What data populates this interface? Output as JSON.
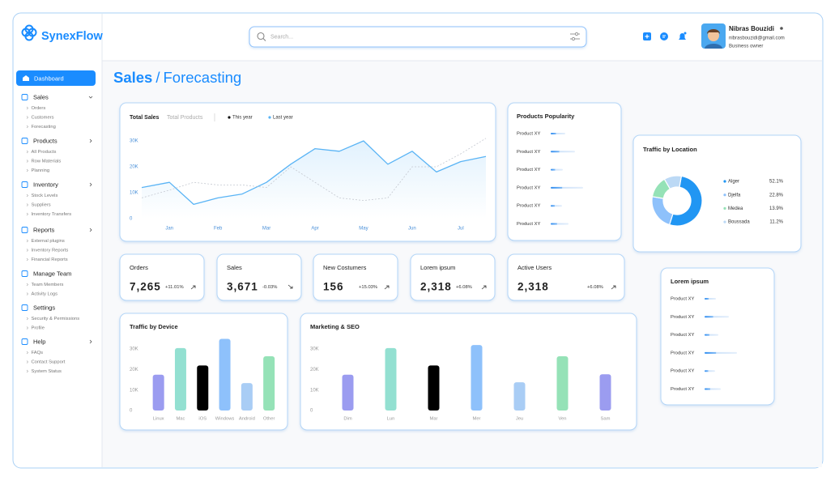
{
  "brand": "SynexFlow",
  "search": {
    "placeholder": "Search..."
  },
  "user": {
    "name": "Nibras Bouzidi",
    "email": "nibrasbouzidi@gmail.com",
    "role": "Business owner"
  },
  "sidebar": [
    {
      "label": "Dashboard",
      "children": []
    },
    {
      "label": "Sales",
      "children": [
        "Orders",
        "Customers",
        "Forecasting"
      ]
    },
    {
      "label": "Products",
      "children": [
        "All Products",
        "Row Materials",
        "Planning"
      ]
    },
    {
      "label": "Inventory",
      "children": [
        "Stock Levels",
        "Suppliers",
        "Inventory Transfers"
      ]
    },
    {
      "label": "Reports",
      "children": [
        "External plugins",
        "Inventory Reports",
        "Financial Reports"
      ]
    },
    {
      "label": "Manage Team",
      "children": [
        "Team Members",
        "Activity Logs"
      ]
    },
    {
      "label": "Settings",
      "children": [
        "Security & Permissions",
        "Profile"
      ]
    },
    {
      "label": "Help",
      "children": [
        "FAQs",
        "Contact Support",
        "System Status"
      ]
    }
  ],
  "page_title": {
    "section": "Sales",
    "separator": "/",
    "page": "Forecasting"
  },
  "stats": [
    {
      "label": "Orders",
      "value": "7,265",
      "change": "+11.01%"
    },
    {
      "label": "Sales",
      "value": "3,671",
      "change": "-0.03%"
    },
    {
      "label": "New Costumers",
      "value": "156",
      "change": "+15.03%"
    },
    {
      "label": "Lorem ipsum",
      "value": "2,318",
      "change": "+6.08%"
    },
    {
      "label": "Active Users",
      "value": "2,318",
      "change": "+6.08%"
    }
  ],
  "products_popularity": {
    "title": "Products Popularity",
    "rows": [
      {
        "label": "Product XY",
        "value": 18
      },
      {
        "label": "Product XY",
        "value": 30
      },
      {
        "label": "Product XY",
        "value": 15
      },
      {
        "label": "Product XY",
        "value": 40
      },
      {
        "label": "Product XY",
        "value": 14
      },
      {
        "label": "Product XY",
        "value": 22
      }
    ]
  },
  "lorem_list": {
    "title": "Lorem ipsum",
    "rows": [
      {
        "label": "Product XY",
        "value": 14
      },
      {
        "label": "Product XY",
        "value": 30
      },
      {
        "label": "Product XY",
        "value": 17
      },
      {
        "label": "Product XY",
        "value": 40
      },
      {
        "label": "Product XY",
        "value": 13
      },
      {
        "label": "Product XY",
        "value": 20
      }
    ]
  },
  "chart_data": [
    {
      "type": "line",
      "tabs": [
        "Total Sales",
        "Total Products"
      ],
      "x": [
        -0.57,
        0,
        0.5,
        1,
        1.5,
        2,
        2.5,
        3,
        3.5,
        4,
        4.5,
        5,
        5.5,
        6,
        6.52
      ],
      "xlim": [
        -0.57,
        6.52
      ],
      "xticks": [
        {
          "value": 0,
          "label": "Jan"
        },
        {
          "value": 1,
          "label": "Feb"
        },
        {
          "value": 2,
          "label": "Mar"
        },
        {
          "value": 3,
          "label": "Apr"
        },
        {
          "value": 4,
          "label": "May"
        },
        {
          "value": 5,
          "label": "Jun"
        },
        {
          "value": 6,
          "label": "Jul"
        }
      ],
      "ylim": [
        0,
        30000
      ],
      "yticks": [
        0,
        {
          "value": 10000,
          "label": "10K"
        },
        {
          "value": 20000,
          "label": "20K"
        },
        {
          "value": 30000,
          "label": "30K"
        }
      ],
      "series": [
        {
          "name": "This year",
          "color": "#5ab4f5",
          "marker": "#111111",
          "values": [
            12000,
            14000,
            5500,
            8000,
            9500,
            14000,
            21000,
            27000,
            26000,
            30000,
            21000,
            26000,
            18000,
            22000,
            24000
          ]
        },
        {
          "name": "Last year",
          "color": "#c4c8d0",
          "marker": "#5ab4f5",
          "values": [
            8000,
            11000,
            14000,
            13000,
            13000,
            12000,
            20000,
            14000,
            8000,
            7000,
            8000,
            20000,
            20000,
            25000,
            31000
          ]
        }
      ]
    },
    {
      "type": "bar",
      "title": "Traffic by Device",
      "categories": [
        "Linux",
        "Mac",
        "iOS",
        "Windows",
        "Android",
        "Other"
      ],
      "values": [
        17500,
        30500,
        22000,
        35000,
        13400,
        26500
      ],
      "colors": [
        "#9b9cf0",
        "#93e0d1",
        "#000000",
        "#8ec1fb",
        "#a9cdf5",
        "#95e2b7"
      ],
      "ylim": [
        0,
        36000
      ],
      "yticks": [
        0,
        {
          "value": 10000,
          "label": "10K"
        },
        {
          "value": 20000,
          "label": "20K"
        },
        {
          "value": 30000,
          "label": "30K"
        }
      ]
    },
    {
      "type": "bar",
      "title": "Marketing & SEO",
      "categories": [
        "Dim",
        "Lun",
        "Mar",
        "Mer",
        "Jeu",
        "Ven",
        "Sam"
      ],
      "values": [
        17500,
        30500,
        22000,
        32000,
        13800,
        26500,
        17700
      ],
      "colors": [
        "#9b9cf0",
        "#93e0d1",
        "#000000",
        "#8ec1fb",
        "#a9cdf5",
        "#95e2b7",
        "#9b9cf0"
      ],
      "ylim": [
        0,
        36000
      ],
      "yticks": [
        0,
        {
          "value": 10000,
          "label": "10K"
        },
        {
          "value": 20000,
          "label": "20K"
        },
        {
          "value": 30000,
          "label": "30K"
        }
      ]
    },
    {
      "type": "pie",
      "title": "Traffic by Location",
      "categories": [
        "Alger",
        "Djelfa",
        "Medea",
        "Boussada"
      ],
      "values": [
        52.1,
        22.8,
        13.9,
        11.2
      ],
      "value_labels": [
        "52.1%",
        "22.8%",
        "13.9%",
        "11.2%"
      ],
      "colors": [
        "#2196f3",
        "#8ec1fb",
        "#95e2b7",
        "#bcd9f5"
      ]
    }
  ]
}
